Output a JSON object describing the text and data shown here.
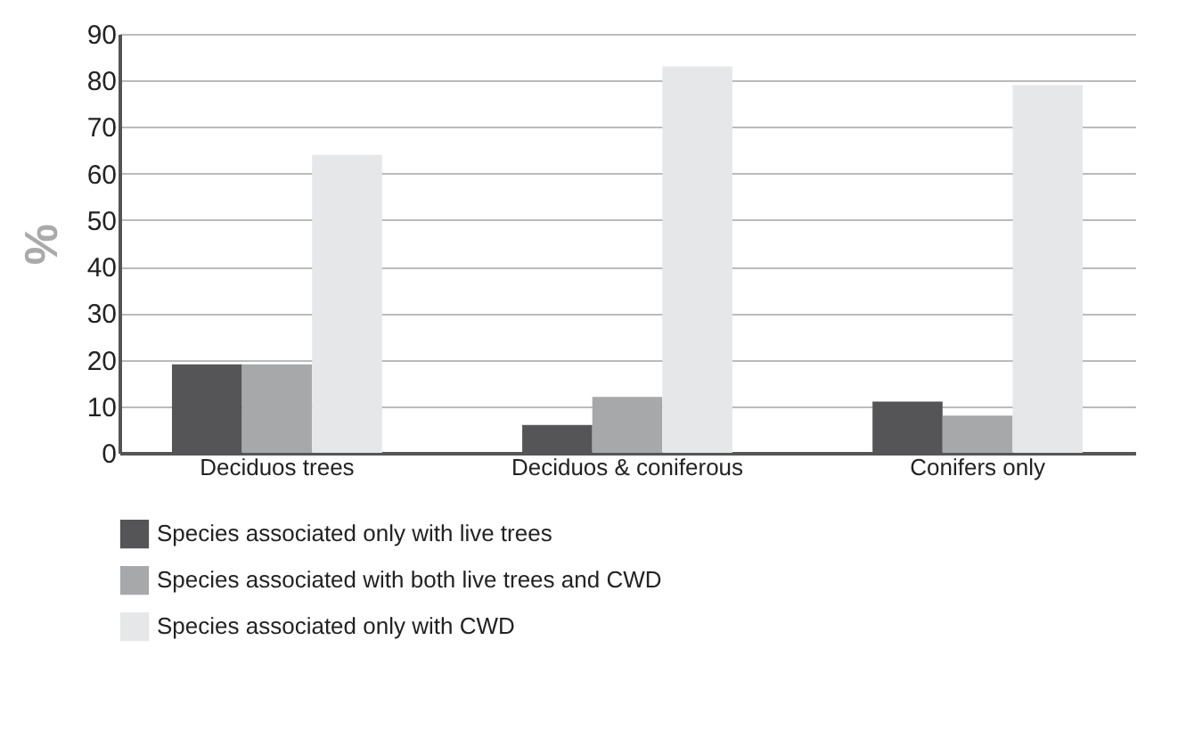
{
  "chart_data": {
    "type": "bar",
    "ylabel": "%",
    "categories": [
      "Deciduos trees",
      "Deciduos & coniferous",
      "Conifers only"
    ],
    "series": [
      {
        "name": "Species associated only with live trees",
        "color": "#555557",
        "values": [
          19,
          6,
          11
        ]
      },
      {
        "name": "Species associated with both live trees and CWD",
        "color": "#a7a8aa",
        "values": [
          19,
          12,
          8
        ]
      },
      {
        "name": "Species associated only with CWD",
        "color": "#e6e7e8",
        "values": [
          64,
          83,
          79
        ]
      }
    ],
    "ylim": [
      0,
      90
    ],
    "yticks": [
      0,
      10,
      20,
      30,
      40,
      50,
      60,
      70,
      80,
      90
    ],
    "grid": "y",
    "legend": "bottom"
  }
}
